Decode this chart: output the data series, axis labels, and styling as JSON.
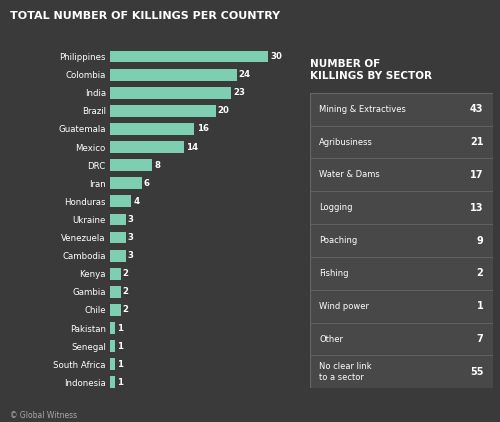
{
  "title": "TOTAL NUMBER OF KILLINGS PER COUNTRY",
  "background_color": "#3a3a3a",
  "bar_color": "#7ecfb2",
  "text_color": "#ffffff",
  "countries": [
    "Philippines",
    "Colombia",
    "India",
    "Brazil",
    "Guatemala",
    "Mexico",
    "DRC",
    "Iran",
    "Honduras",
    "Ukraine",
    "Venezuela",
    "Cambodia",
    "Kenya",
    "Gambia",
    "Chile",
    "Pakistan",
    "Senegal",
    "South Africa",
    "Indonesia"
  ],
  "values": [
    30,
    24,
    23,
    20,
    16,
    14,
    8,
    6,
    4,
    3,
    3,
    3,
    2,
    2,
    2,
    1,
    1,
    1,
    1
  ],
  "sector_title": "NUMBER OF\nKILLINGS BY SECTOR",
  "sector_labels": [
    "Mining & Extractives",
    "Agribusiness",
    "Water & Dams",
    "Logging",
    "Poaching",
    "Fishing",
    "Wind power",
    "Other",
    "No clear link\nto a sector"
  ],
  "sector_values": [
    43,
    21,
    17,
    13,
    9,
    2,
    1,
    7,
    55
  ],
  "footnote": "© Global Witness",
  "separator_color": "#666666",
  "table_bg_color": "#484848"
}
